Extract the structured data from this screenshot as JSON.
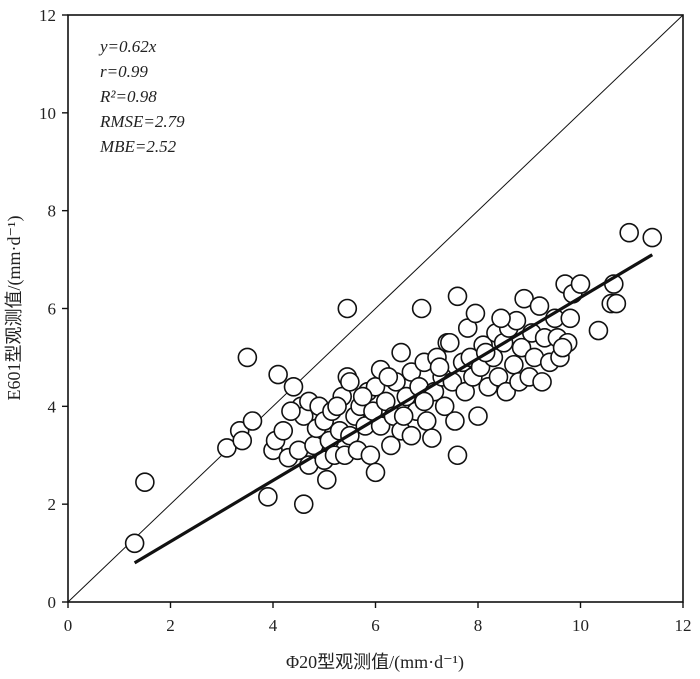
{
  "chart_data": {
    "type": "scatter",
    "xlabel": "Φ20型观测值/(mm·d⁻¹)",
    "ylabel": "E601型观测值/(mm·d⁻¹)",
    "xlim": [
      0,
      12
    ],
    "ylim": [
      0,
      12
    ],
    "xticks": [
      "0",
      "2",
      "4",
      "6",
      "8",
      "10",
      "12"
    ],
    "yticks": [
      "0",
      "2",
      "4",
      "6",
      "8",
      "10",
      "12"
    ],
    "grid": false,
    "annotations": [
      "y=0.62x",
      "r=0.99",
      "R²=0.98",
      "RMSE=2.79",
      "MBE=2.52"
    ],
    "reference_line": {
      "kind": "1:1",
      "x": [
        0,
        12
      ],
      "y": [
        0,
        12
      ]
    },
    "fit_line": {
      "slope": 0.62,
      "x": [
        1.3,
        11.4
      ],
      "y": [
        0.8,
        7.1
      ]
    },
    "points": [
      [
        1.3,
        1.2
      ],
      [
        1.5,
        2.45
      ],
      [
        3.1,
        3.15
      ],
      [
        3.35,
        3.5
      ],
      [
        3.4,
        3.3
      ],
      [
        3.5,
        5.0
      ],
      [
        3.6,
        3.7
      ],
      [
        3.9,
        2.15
      ],
      [
        4.0,
        3.1
      ],
      [
        4.05,
        3.3
      ],
      [
        4.1,
        4.65
      ],
      [
        4.2,
        3.5
      ],
      [
        4.3,
        2.95
      ],
      [
        4.4,
        4.4
      ],
      [
        4.5,
        3.1
      ],
      [
        4.55,
        4.0
      ],
      [
        4.6,
        2.0
      ],
      [
        4.6,
        3.8
      ],
      [
        4.7,
        2.8
      ],
      [
        4.7,
        4.1
      ],
      [
        4.8,
        3.2
      ],
      [
        4.85,
        3.55
      ],
      [
        4.9,
        4.0
      ],
      [
        5.0,
        2.9
      ],
      [
        5.0,
        3.7
      ],
      [
        5.05,
        2.5
      ],
      [
        5.1,
        3.3
      ],
      [
        5.15,
        3.9
      ],
      [
        5.2,
        3.0
      ],
      [
        5.3,
        3.5
      ],
      [
        5.35,
        4.2
      ],
      [
        5.4,
        3.0
      ],
      [
        5.45,
        4.6
      ],
      [
        5.45,
        6.0
      ],
      [
        5.5,
        3.4
      ],
      [
        5.5,
        4.5
      ],
      [
        5.6,
        3.8
      ],
      [
        5.65,
        3.1
      ],
      [
        5.7,
        4.0
      ],
      [
        5.8,
        3.6
      ],
      [
        5.85,
        4.3
      ],
      [
        5.9,
        3.0
      ],
      [
        5.95,
        3.9
      ],
      [
        6.0,
        2.65
      ],
      [
        6.0,
        4.4
      ],
      [
        6.1,
        3.6
      ],
      [
        6.1,
        4.75
      ],
      [
        6.2,
        4.1
      ],
      [
        6.3,
        3.2
      ],
      [
        6.35,
        3.8
      ],
      [
        6.4,
        4.5
      ],
      [
        6.5,
        3.5
      ],
      [
        6.5,
        5.1
      ],
      [
        6.6,
        4.2
      ],
      [
        6.7,
        3.4
      ],
      [
        6.7,
        4.7
      ],
      [
        6.8,
        3.9
      ],
      [
        6.85,
        4.4
      ],
      [
        6.9,
        6.0
      ],
      [
        6.95,
        4.9
      ],
      [
        7.0,
        3.7
      ],
      [
        7.1,
        3.35
      ],
      [
        7.15,
        4.3
      ],
      [
        7.2,
        5.0
      ],
      [
        7.3,
        4.6
      ],
      [
        7.35,
        4.0
      ],
      [
        7.4,
        5.3
      ],
      [
        7.5,
        4.5
      ],
      [
        7.55,
        3.7
      ],
      [
        7.6,
        6.25
      ],
      [
        7.6,
        3.0
      ],
      [
        7.7,
        4.9
      ],
      [
        7.75,
        4.3
      ],
      [
        7.8,
        5.6
      ],
      [
        7.85,
        5.0
      ],
      [
        7.9,
        4.6
      ],
      [
        7.95,
        5.9
      ],
      [
        8.0,
        3.8
      ],
      [
        8.05,
        4.8
      ],
      [
        8.1,
        5.25
      ],
      [
        8.2,
        4.4
      ],
      [
        8.3,
        5.0
      ],
      [
        8.35,
        5.5
      ],
      [
        8.4,
        4.6
      ],
      [
        8.5,
        5.3
      ],
      [
        8.55,
        4.3
      ],
      [
        8.6,
        5.6
      ],
      [
        8.7,
        4.85
      ],
      [
        8.75,
        5.75
      ],
      [
        8.8,
        4.5
      ],
      [
        8.85,
        5.2
      ],
      [
        8.9,
        6.2
      ],
      [
        9.0,
        4.6
      ],
      [
        9.05,
        5.5
      ],
      [
        9.1,
        5.0
      ],
      [
        9.2,
        6.05
      ],
      [
        9.25,
        4.5
      ],
      [
        9.3,
        5.4
      ],
      [
        9.4,
        4.9
      ],
      [
        9.5,
        5.8
      ],
      [
        9.55,
        5.4
      ],
      [
        9.6,
        5.0
      ],
      [
        9.7,
        6.5
      ],
      [
        9.75,
        5.3
      ],
      [
        9.8,
        5.8
      ],
      [
        9.85,
        6.3
      ],
      [
        10.0,
        6.5
      ],
      [
        10.35,
        5.55
      ],
      [
        10.6,
        6.1
      ],
      [
        10.65,
        6.5
      ],
      [
        10.7,
        6.1
      ],
      [
        10.95,
        7.55
      ],
      [
        11.4,
        7.45
      ],
      [
        5.75,
        4.2
      ],
      [
        6.25,
        4.6
      ],
      [
        6.95,
        4.1
      ],
      [
        7.45,
        5.3
      ],
      [
        8.15,
        5.1
      ],
      [
        4.35,
        3.9
      ],
      [
        5.25,
        4.0
      ],
      [
        6.55,
        3.8
      ],
      [
        7.25,
        4.8
      ],
      [
        8.45,
        5.8
      ],
      [
        9.65,
        5.2
      ]
    ]
  }
}
